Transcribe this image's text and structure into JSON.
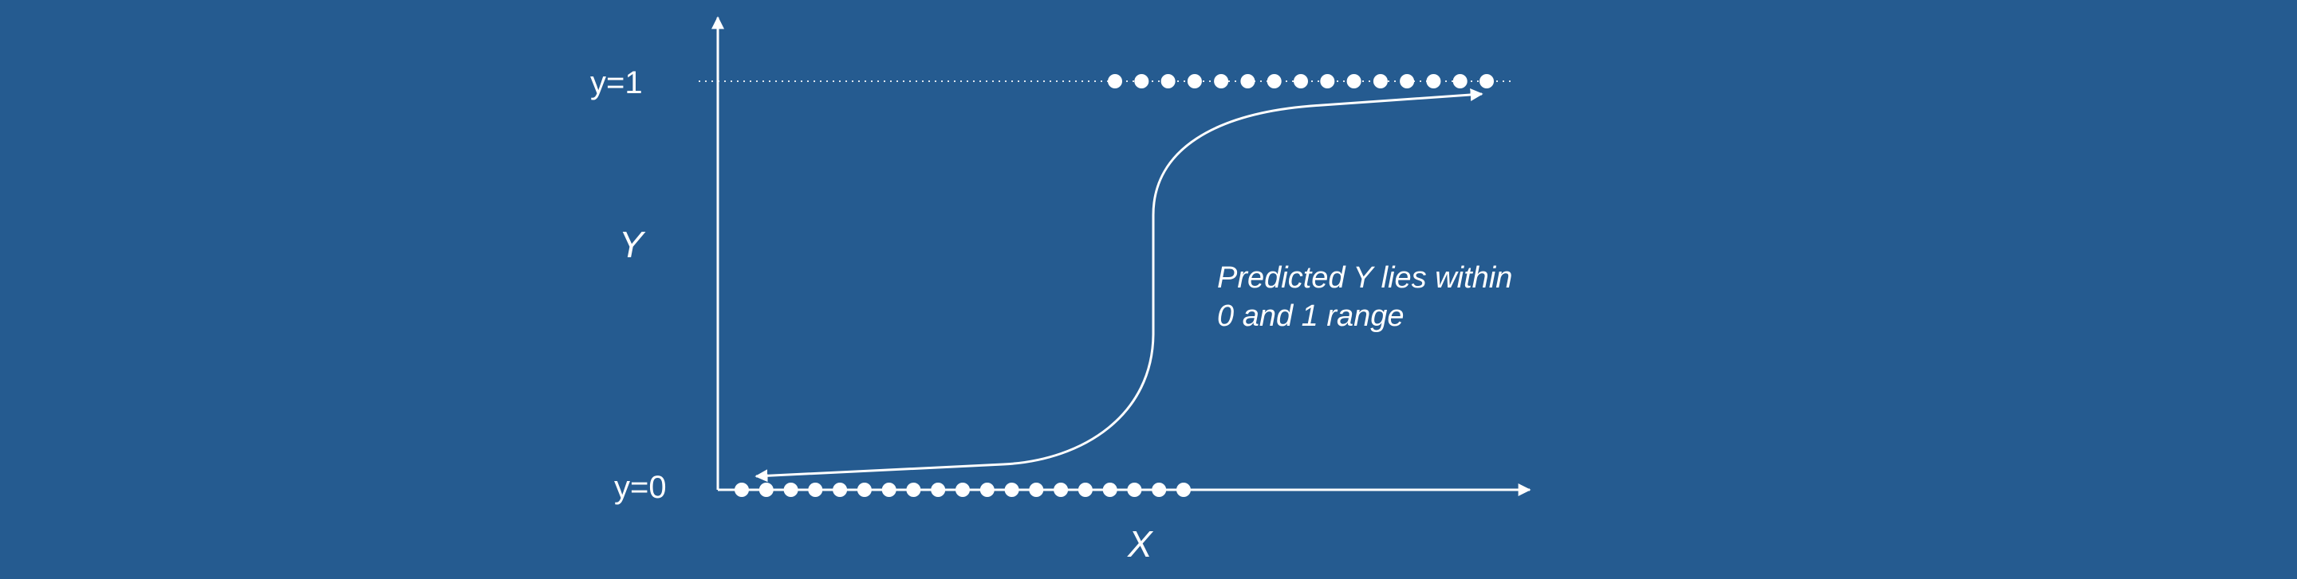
{
  "labels": {
    "y_top": "y=1",
    "y_bottom": "y=0",
    "y_axis": "Y",
    "x_axis": "X",
    "annotation_line1": "Predicted Y lies within",
    "annotation_line2": "0 and 1 range"
  },
  "colors": {
    "background": "#255b90",
    "foreground": "#ffffff"
  },
  "points": {
    "class_1_count": 15,
    "class_0_count": 19
  }
}
